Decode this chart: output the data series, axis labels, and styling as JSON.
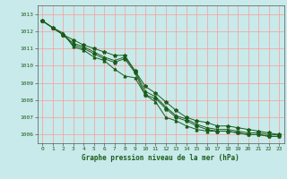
{
  "title": "Graphe pression niveau de la mer (hPa)",
  "background_color": "#c8eaea",
  "grid_color": "#ff9999",
  "line_color": "#1a5c1a",
  "xlim": [
    -0.5,
    23.5
  ],
  "ylim": [
    1005.5,
    1013.5
  ],
  "yticks": [
    1006,
    1007,
    1008,
    1009,
    1010,
    1011,
    1012,
    1013
  ],
  "xticks": [
    0,
    1,
    2,
    3,
    4,
    5,
    6,
    7,
    8,
    9,
    10,
    11,
    12,
    13,
    14,
    15,
    16,
    17,
    18,
    19,
    20,
    21,
    22,
    23
  ],
  "series": [
    [
      1012.6,
      1012.2,
      1011.8,
      1011.2,
      1011.0,
      1010.7,
      1010.4,
      1010.2,
      1010.4,
      1009.6,
      1008.3,
      1008.1,
      1007.5,
      1007.0,
      1006.8,
      1006.5,
      1006.3,
      1006.2,
      1006.2,
      1006.1,
      1006.0,
      1006.0,
      1005.9,
      1005.9
    ],
    [
      1012.6,
      1012.2,
      1011.8,
      1011.3,
      1011.1,
      1010.8,
      1010.5,
      1010.3,
      1010.5,
      1009.7,
      1008.5,
      1008.2,
      1007.6,
      1007.1,
      1006.9,
      1006.6,
      1006.4,
      1006.3,
      1006.3,
      1006.2,
      1006.1,
      1006.1,
      1006.0,
      1006.0
    ],
    [
      1012.6,
      1012.2,
      1011.8,
      1011.5,
      1011.2,
      1011.0,
      1010.8,
      1010.6,
      1010.6,
      1009.7,
      1008.8,
      1008.4,
      1007.9,
      1007.4,
      1007.0,
      1006.8,
      1006.7,
      1006.5,
      1006.5,
      1006.4,
      1006.3,
      1006.2,
      1006.1,
      1006.0
    ],
    [
      1012.6,
      1012.2,
      1011.9,
      1011.1,
      1010.9,
      1010.5,
      1010.3,
      1009.8,
      1009.4,
      1009.3,
      1008.3,
      1007.9,
      1007.0,
      1006.8,
      1006.5,
      1006.3,
      1006.2,
      1006.2,
      1006.2,
      1006.1,
      1006.0,
      1006.0,
      1005.9,
      1005.9
    ]
  ],
  "marker_series_star": [
    0,
    2
  ],
  "marker_series_tri": [
    1,
    3
  ]
}
